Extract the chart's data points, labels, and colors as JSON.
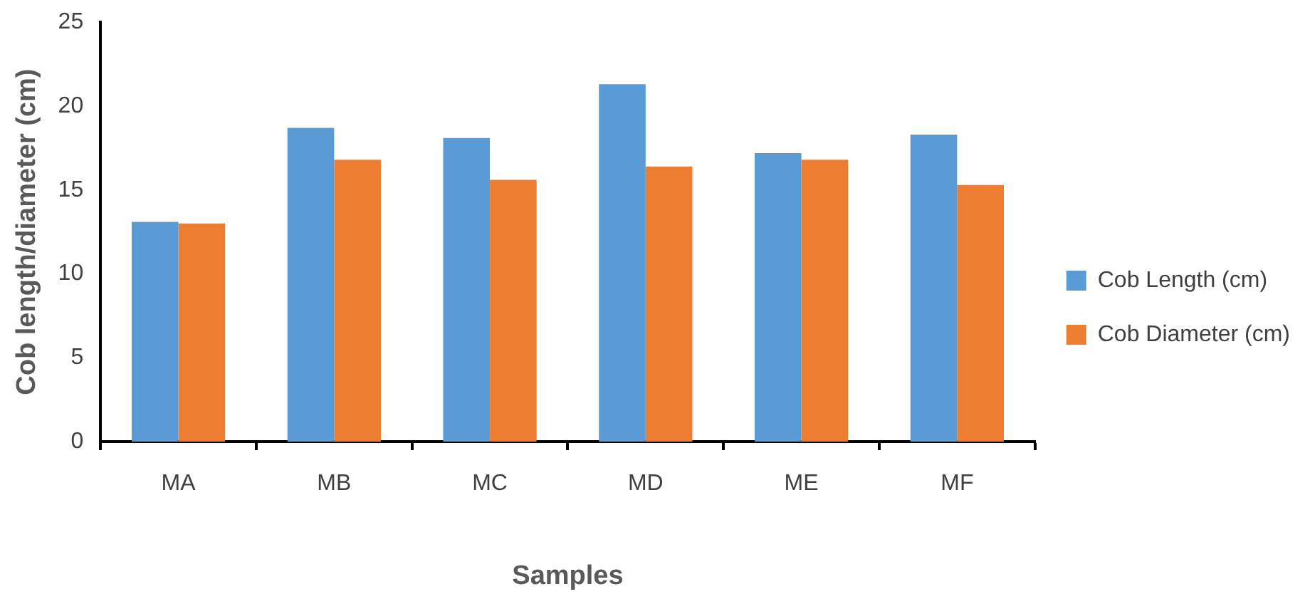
{
  "chart_data": {
    "type": "bar",
    "xlabel": "Samples",
    "ylabel": "Cob length/diameter (cm)",
    "categories": [
      "MA",
      "MB",
      "MC",
      "MD",
      "ME",
      "MF"
    ],
    "series": [
      {
        "name": "Cob Length (cm)",
        "color": "#5b9bd5",
        "values": [
          13.1,
          18.7,
          18.1,
          21.3,
          17.2,
          18.3
        ]
      },
      {
        "name": "Cob Diameter (cm)",
        "color": "#ed7d31",
        "values": [
          13.0,
          16.8,
          15.6,
          16.4,
          16.8,
          15.3
        ]
      }
    ],
    "ylim": [
      0,
      25
    ],
    "yticks": [
      0,
      5,
      10,
      15,
      20,
      25
    ],
    "grid": false,
    "legend": "right"
  }
}
